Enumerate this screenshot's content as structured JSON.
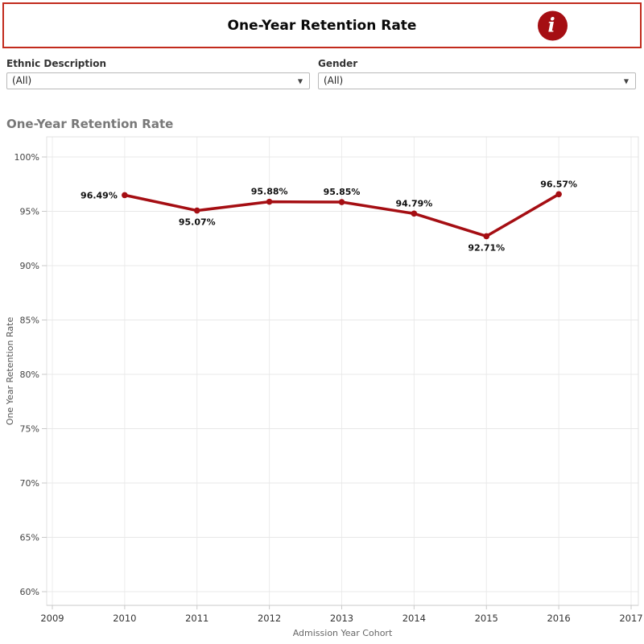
{
  "header": {
    "title": "One-Year Retention Rate",
    "info_icon_glyph": "i",
    "border_color": "#C22B1D",
    "info_icon_color": "#A50E13"
  },
  "filters": [
    {
      "label": "Ethnic Description",
      "value": "(All)",
      "caret": "▼"
    },
    {
      "label": "Gender",
      "value": "(All)",
      "caret": "▼"
    }
  ],
  "chart_section": {
    "title": "One-Year Retention Rate"
  },
  "chart_data": {
    "type": "line",
    "title": "One-Year Retention Rate",
    "xlabel": "Admission Year Cohort",
    "ylabel": "One Year Retention Rate",
    "xlim": [
      2009,
      2017
    ],
    "ylim": [
      60,
      100
    ],
    "grid": true,
    "legend": "none",
    "line_color": "#A50E13",
    "xticks": [
      "2009",
      "2010",
      "2011",
      "2012",
      "2013",
      "2014",
      "2015",
      "2016",
      "2017"
    ],
    "xtick_values": [
      2009,
      2010,
      2011,
      2012,
      2013,
      2014,
      2015,
      2016,
      2017
    ],
    "ytick_labels": [
      "100%",
      "95%",
      "90%",
      "85%",
      "80%",
      "75%",
      "70%",
      "65%",
      "60%"
    ],
    "ytick_values": [
      100,
      95,
      90,
      85,
      80,
      75,
      70,
      65,
      60
    ],
    "series": [
      {
        "name": "One Year Retention Rate",
        "points": [
          {
            "x": 2010,
            "y": 96.49,
            "label": "96.49%",
            "label_position": "left"
          },
          {
            "x": 2011,
            "y": 95.07,
            "label": "95.07%",
            "label_position": "below"
          },
          {
            "x": 2012,
            "y": 95.88,
            "label": "95.88%",
            "label_position": "above"
          },
          {
            "x": 2013,
            "y": 95.85,
            "label": "95.85%",
            "label_position": "above"
          },
          {
            "x": 2014,
            "y": 94.79,
            "label": "94.79%",
            "label_position": "above"
          },
          {
            "x": 2015,
            "y": 92.71,
            "label": "92.71%",
            "label_position": "below"
          },
          {
            "x": 2016,
            "y": 96.57,
            "label": "96.57%",
            "label_position": "above"
          }
        ]
      }
    ]
  }
}
